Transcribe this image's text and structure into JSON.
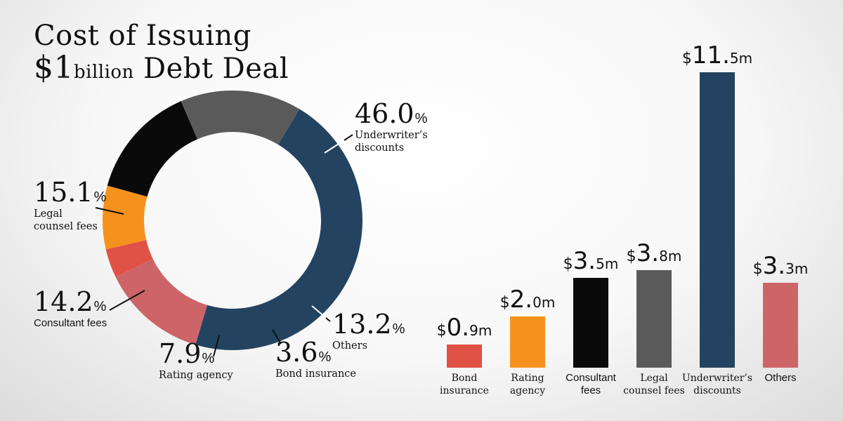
{
  "title": {
    "line1": "Cost of Issuing",
    "currency": "$",
    "amount": "1",
    "amount_unit": "billion",
    "line2_rest": " Debt Deal"
  },
  "chart_data": [
    {
      "type": "pie",
      "unit": "%",
      "slices": [
        {
          "name": "Underwriter’s discounts",
          "name_lines": [
            "Underwriter’s",
            "discounts"
          ],
          "value": 46.0,
          "display": "46.0",
          "color": "#234360"
        },
        {
          "name": "Others",
          "name_lines": [
            "Others"
          ],
          "value": 13.2,
          "display": "13.2",
          "color": "#cd6568"
        },
        {
          "name": "Bond insurance",
          "name_lines": [
            "Bond insurance"
          ],
          "value": 3.6,
          "display": "3.6",
          "color": "#e05146"
        },
        {
          "name": "Rating agency",
          "name_lines": [
            "Rating agency"
          ],
          "value": 7.9,
          "display": "7.9",
          "color": "#f5921e"
        },
        {
          "name": "Consultant fees",
          "name_lines": [
            "Consultant fees"
          ],
          "value": 14.2,
          "display": "14.2",
          "color": "#0a0a0a"
        },
        {
          "name": "Legal counsel fees",
          "name_lines": [
            "Legal",
            "counsel fees"
          ],
          "value": 15.1,
          "display": "15.1",
          "color": "#5b5a5b"
        }
      ]
    },
    {
      "type": "bar",
      "currency": "$",
      "unit": "m",
      "categories": [
        "Bond insurance",
        "Rating agency",
        "Consultant fees",
        "Legal counsel fees",
        "Underwriter’s discounts",
        "Others"
      ],
      "category_lines": [
        [
          "Bond",
          "insurance"
        ],
        [
          "Rating",
          "agency"
        ],
        [
          "Consultant",
          "fees"
        ],
        [
          "Legal",
          "counsel fees"
        ],
        [
          "Underwriter’s",
          "discounts"
        ],
        [
          "Others"
        ]
      ],
      "values": [
        0.9,
        2.0,
        3.5,
        3.8,
        11.5,
        3.3
      ],
      "colors": [
        "#e05146",
        "#f5921e",
        "#0a0a0a",
        "#5b5a5b",
        "#234360",
        "#cd6568"
      ]
    }
  ]
}
